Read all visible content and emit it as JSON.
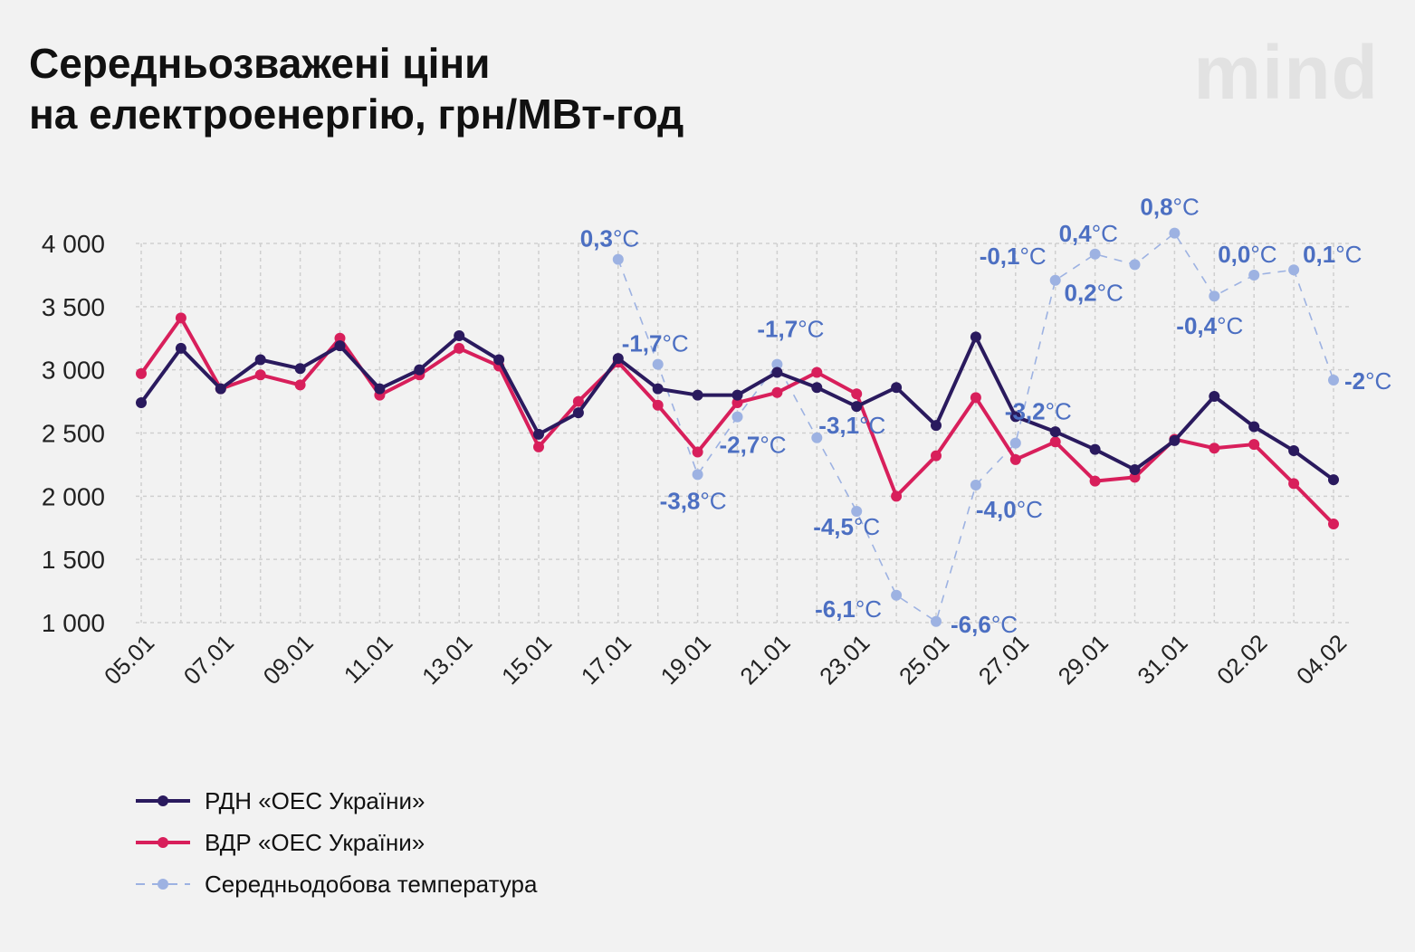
{
  "title_line1": "Середньозважені ціни",
  "title_line2": "на електроенергію, грн/МВт-год",
  "brand": "mind",
  "colors": {
    "rdn": "#2a1a5e",
    "vdr": "#d81f5b",
    "temp": "#9db2e2",
    "temp_label": "#4c6fc2",
    "grid": "#cfcfcf"
  },
  "chart_data": {
    "type": "line",
    "ylim": [
      1000,
      4000
    ],
    "y_ticks": [
      "1 000",
      "1 500",
      "2 000",
      "2 500",
      "3 000",
      "3 500",
      "4 000"
    ],
    "categories": [
      "05.01",
      "06.01",
      "07.01",
      "08.01",
      "09.01",
      "10.01",
      "11.01",
      "12.01",
      "13.01",
      "14.01",
      "15.01",
      "16.01",
      "17.01",
      "18.01",
      "19.01",
      "20.01",
      "21.01",
      "22.01",
      "23.01",
      "24.01",
      "25.01",
      "26.01",
      "27.01",
      "28.01",
      "29.01",
      "30.01",
      "31.01",
      "01.02",
      "02.02",
      "03.02",
      "04.02"
    ],
    "x_tick_labels": [
      "05.01",
      "07.01",
      "09.01",
      "11.01",
      "13.01",
      "15.01",
      "17.01",
      "19.01",
      "21.01",
      "23.01",
      "25.01",
      "27.01",
      "29.01",
      "31.01",
      "02.02",
      "04.02"
    ],
    "series": [
      {
        "name": "РДН «ОЕС України»",
        "values": [
          2740,
          3170,
          2850,
          3080,
          3010,
          3190,
          2850,
          3000,
          3270,
          3080,
          2490,
          2660,
          3090,
          2850,
          2800,
          2800,
          2980,
          2860,
          2710,
          2860,
          2560,
          3260,
          2630,
          2510,
          2370,
          2210,
          2440,
          2790,
          2550,
          2360,
          2130
        ]
      },
      {
        "name": "ВДР «ОЕС України»",
        "values": [
          2970,
          3410,
          2850,
          2960,
          2880,
          3250,
          2800,
          2960,
          3170,
          3030,
          2390,
          2750,
          3060,
          2720,
          2350,
          2740,
          2820,
          2980,
          2810,
          2000,
          2320,
          2780,
          2290,
          2430,
          2120,
          2150,
          2450,
          2380,
          2410,
          2100,
          1780
        ]
      },
      {
        "name": "Середньодобова температура",
        "values": [
          null,
          null,
          null,
          null,
          null,
          null,
          null,
          null,
          null,
          null,
          null,
          null,
          0.3,
          -1.7,
          -3.8,
          -2.7,
          -1.7,
          -3.1,
          -4.5,
          -6.1,
          -6.6,
          -4.0,
          -3.2,
          -0.1,
          0.4,
          0.2,
          0.8,
          -0.4,
          0.0,
          0.1,
          -2
        ]
      }
    ],
    "temp_labels": [
      {
        "num": "0,3",
        "unit": "°C"
      },
      {
        "num": "-1,7",
        "unit": "°C"
      },
      {
        "num": "-3,8",
        "unit": "°C"
      },
      {
        "num": "-2,7",
        "unit": "°C"
      },
      {
        "num": "-1,7",
        "unit": "°C"
      },
      {
        "num": "-3,1",
        "unit": "°C"
      },
      {
        "num": "-4,5",
        "unit": "°C"
      },
      {
        "num": "-6,1",
        "unit": "°C"
      },
      {
        "num": "-6,6",
        "unit": "°C"
      },
      {
        "num": "-4,0",
        "unit": "°C"
      },
      {
        "num": "-3,2",
        "unit": "°C"
      },
      {
        "num": "-0,1",
        "unit": "°C"
      },
      {
        "num": "0,4",
        "unit": "°C"
      },
      {
        "num": "0,2",
        "unit": "°C"
      },
      {
        "num": "0,8",
        "unit": "°C"
      },
      {
        "num": "-0,4",
        "unit": "°C"
      },
      {
        "num": "0,0",
        "unit": "°C"
      },
      {
        "num": "0,1",
        "unit": "°C"
      },
      {
        "num": "-2",
        "unit": "°C"
      }
    ],
    "grid": true
  },
  "legend": [
    {
      "label": "РДН «ОЕС України»"
    },
    {
      "label": "ВДР «ОЕС України»"
    },
    {
      "label": "Середньодобова температура"
    }
  ]
}
